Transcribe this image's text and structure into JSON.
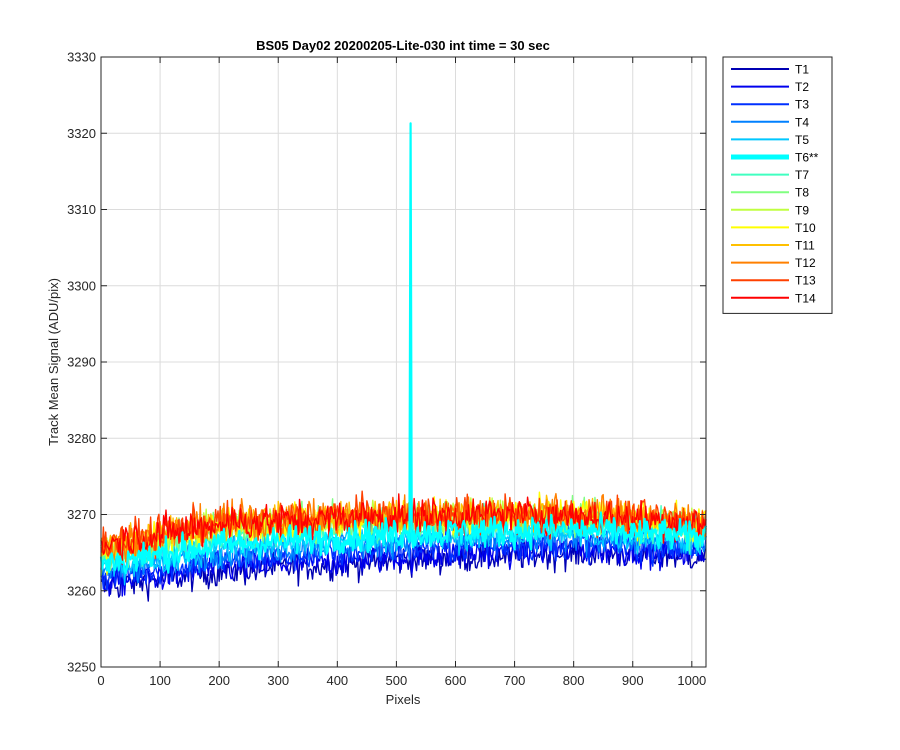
{
  "chart_data": {
    "type": "line",
    "title": "BS05 Day02 20200205-Lite-030 int time = 30 sec",
    "xlabel": "Pixels",
    "ylabel": "Track Mean Signal (ADU/pix)",
    "xlim": [
      0,
      1024
    ],
    "ylim": [
      3250,
      3330
    ],
    "xticks": [
      0,
      100,
      200,
      300,
      400,
      500,
      600,
      700,
      800,
      900,
      1000
    ],
    "yticks": [
      3250,
      3260,
      3270,
      3280,
      3290,
      3300,
      3310,
      3320,
      3330
    ],
    "grid": true,
    "legend_position": "outside-top-right",
    "series": [
      {
        "name": "T1",
        "color": "#0000b3",
        "profile": [
          [
            0,
            3260.5
          ],
          [
            200,
            3262.5
          ],
          [
            500,
            3264.0
          ],
          [
            800,
            3265.0
          ],
          [
            1024,
            3264.5
          ]
        ],
        "noise": 1.0
      },
      {
        "name": "T2",
        "color": "#0000ee",
        "profile": [
          [
            0,
            3261.0
          ],
          [
            200,
            3263.0
          ],
          [
            500,
            3264.5
          ],
          [
            800,
            3265.5
          ],
          [
            1024,
            3265.0
          ]
        ],
        "noise": 1.0
      },
      {
        "name": "T3",
        "color": "#0030ff",
        "profile": [
          [
            0,
            3261.8
          ],
          [
            200,
            3264.0
          ],
          [
            500,
            3265.5
          ],
          [
            800,
            3266.2
          ],
          [
            1024,
            3265.5
          ]
        ],
        "noise": 1.0
      },
      {
        "name": "T4",
        "color": "#0080ff",
        "profile": [
          [
            0,
            3262.5
          ],
          [
            200,
            3265.0
          ],
          [
            500,
            3266.5
          ],
          [
            800,
            3267.0
          ],
          [
            1024,
            3266.0
          ]
        ],
        "noise": 1.0
      },
      {
        "name": "T5",
        "color": "#00c8ff",
        "profile": [
          [
            0,
            3263.0
          ],
          [
            200,
            3265.5
          ],
          [
            500,
            3267.0
          ],
          [
            800,
            3267.5
          ],
          [
            1024,
            3266.5
          ]
        ],
        "noise": 1.0
      },
      {
        "name": "T6**",
        "color": "#00ffff",
        "emphasized": true,
        "profile": [
          [
            0,
            3263.5
          ],
          [
            200,
            3266.0
          ],
          [
            500,
            3267.5
          ],
          [
            800,
            3268.0
          ],
          [
            1024,
            3267.0
          ]
        ],
        "noise": 1.0,
        "spike": {
          "x": 524,
          "y": 3321.3
        }
      },
      {
        "name": "T7",
        "color": "#40ffc0",
        "profile": [
          [
            0,
            3264.0
          ],
          [
            200,
            3267.5
          ],
          [
            500,
            3268.8
          ],
          [
            800,
            3269.2
          ],
          [
            1024,
            3268.0
          ]
        ],
        "noise": 1.1
      },
      {
        "name": "T8",
        "color": "#80ff80",
        "profile": [
          [
            0,
            3264.5
          ],
          [
            200,
            3268.0
          ],
          [
            500,
            3269.2
          ],
          [
            800,
            3269.5
          ],
          [
            1024,
            3268.3
          ]
        ],
        "noise": 1.1
      },
      {
        "name": "T9",
        "color": "#c0ff40",
        "profile": [
          [
            0,
            3265.0
          ],
          [
            200,
            3268.5
          ],
          [
            500,
            3269.5
          ],
          [
            800,
            3269.8
          ],
          [
            1024,
            3268.6
          ]
        ],
        "noise": 1.1
      },
      {
        "name": "T10",
        "color": "#ffff00",
        "profile": [
          [
            0,
            3265.0
          ],
          [
            200,
            3268.5
          ],
          [
            500,
            3269.6
          ],
          [
            800,
            3270.0
          ],
          [
            1024,
            3268.8
          ]
        ],
        "noise": 1.1
      },
      {
        "name": "T11",
        "color": "#ffc000",
        "profile": [
          [
            0,
            3265.5
          ],
          [
            200,
            3268.8
          ],
          [
            500,
            3269.8
          ],
          [
            800,
            3270.0
          ],
          [
            1024,
            3269.0
          ]
        ],
        "noise": 1.1
      },
      {
        "name": "T12",
        "color": "#ff8000",
        "profile": [
          [
            0,
            3265.8
          ],
          [
            200,
            3269.0
          ],
          [
            500,
            3270.0
          ],
          [
            800,
            3270.2
          ],
          [
            1024,
            3269.0
          ]
        ],
        "noise": 1.2
      },
      {
        "name": "T13",
        "color": "#ff4000",
        "profile": [
          [
            0,
            3266.0
          ],
          [
            200,
            3269.0
          ],
          [
            500,
            3270.0
          ],
          [
            800,
            3270.0
          ],
          [
            1024,
            3269.0
          ]
        ],
        "noise": 1.2
      },
      {
        "name": "T14",
        "color": "#ff0000",
        "profile": [
          [
            0,
            3266.0
          ],
          [
            200,
            3268.8
          ],
          [
            500,
            3269.8
          ],
          [
            800,
            3269.8
          ],
          [
            1024,
            3268.8
          ]
        ],
        "noise": 1.2
      }
    ]
  }
}
